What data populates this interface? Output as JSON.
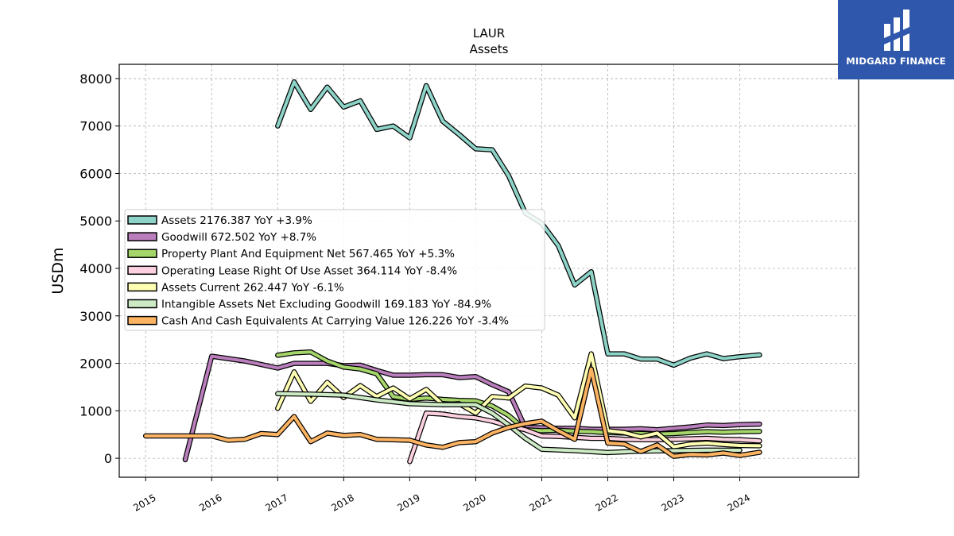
{
  "brand": {
    "name": "MIDGARD FINANCE",
    "bg": "#2f57ab"
  },
  "chart_data": {
    "type": "line",
    "title": "LAUR",
    "subtitle": "Assets",
    "ylabel": "USDm",
    "ylim": [
      -400,
      8300
    ],
    "xlim": [
      2014.6,
      2025.8
    ],
    "yticks": [
      0,
      1000,
      2000,
      3000,
      4000,
      5000,
      6000,
      7000,
      8000
    ],
    "xticks": [
      2015,
      2016,
      2017,
      2018,
      2019,
      2020,
      2021,
      2022,
      2023,
      2024
    ],
    "grid": true,
    "legend_position": "center-left",
    "series": [
      {
        "name": "Assets  2176.387 YoY +3.9%",
        "color": "#8dd3c7",
        "x": [
          2017.0,
          2017.25,
          2017.5,
          2017.75,
          2018.0,
          2018.25,
          2018.5,
          2018.75,
          2019.0,
          2019.25,
          2019.5,
          2019.75,
          2020.0,
          2020.25,
          2020.5,
          2020.75,
          2021.0,
          2021.25,
          2021.5,
          2021.75,
          2022.0,
          2022.25,
          2022.5,
          2022.75,
          2023.0,
          2023.25,
          2023.5,
          2023.75,
          2024.0,
          2024.3
        ],
        "y": [
          7000,
          7930,
          7350,
          7820,
          7400,
          7530,
          6930,
          7000,
          6750,
          7850,
          7100,
          6820,
          6520,
          6500,
          5950,
          5170,
          4950,
          4480,
          3650,
          3930,
          2200,
          2200,
          2090,
          2090,
          1960,
          2110,
          2200,
          2100,
          2140,
          2176
        ]
      },
      {
        "name": "Goodwill  672.502 YoY +8.7%",
        "color": "#b97ebb",
        "x": [
          2015.6,
          2016.0,
          2016.5,
          2017.0,
          2017.25,
          2017.5,
          2017.75,
          2018.0,
          2018.25,
          2018.5,
          2018.75,
          2019.0,
          2019.25,
          2019.5,
          2019.75,
          2020.0,
          2020.25,
          2020.5,
          2020.75,
          2021.0,
          2021.25,
          2021.5,
          2021.75,
          2022.0,
          2022.25,
          2022.5,
          2022.75,
          2023.0,
          2023.25,
          2023.5,
          2023.75,
          2024.0,
          2024.3
        ],
        "y": [
          -30,
          2150,
          2050,
          1900,
          2000,
          2000,
          2000,
          1950,
          1960,
          1850,
          1750,
          1750,
          1760,
          1760,
          1700,
          1720,
          1550,
          1400,
          650,
          640,
          630,
          630,
          610,
          610,
          610,
          620,
          600,
          630,
          660,
          700,
          690,
          710,
          720
        ]
      },
      {
        "name": "Property Plant And Equipment Net  567.465 YoY +5.3%",
        "color": "#a5d66a",
        "x": [
          2017.0,
          2017.25,
          2017.5,
          2017.75,
          2018.0,
          2018.25,
          2018.5,
          2018.75,
          2019.0,
          2019.25,
          2019.5,
          2019.75,
          2020.0,
          2020.25,
          2020.5,
          2020.75,
          2021.0,
          2021.25,
          2021.5,
          2021.75,
          2022.0,
          2022.25,
          2022.5,
          2022.75,
          2023.0,
          2023.25,
          2023.5,
          2023.75,
          2024.0,
          2024.3
        ],
        "y": [
          2170,
          2220,
          2240,
          2050,
          1920,
          1880,
          1780,
          1300,
          1240,
          1270,
          1240,
          1220,
          1210,
          1100,
          900,
          600,
          580,
          590,
          570,
          560,
          540,
          530,
          520,
          510,
          520,
          540,
          560,
          550,
          560,
          567
        ]
      },
      {
        "name": "Operating Lease Right Of Use Asset  364.114 YoY -8.4%",
        "color": "#fcd0e0",
        "x": [
          2019.0,
          2019.25,
          2019.5,
          2019.75,
          2020.0,
          2020.25,
          2020.5,
          2020.75,
          2021.0,
          2021.25,
          2021.5,
          2021.75,
          2022.0,
          2022.25,
          2022.5,
          2022.75,
          2023.0,
          2023.25,
          2023.5,
          2023.75,
          2024.0,
          2024.3
        ],
        "y": [
          -70,
          950,
          930,
          880,
          850,
          780,
          680,
          600,
          470,
          460,
          440,
          420,
          420,
          400,
          390,
          390,
          400,
          410,
          420,
          400,
          390,
          364
        ]
      },
      {
        "name": "Assets Current  262.447 YoY -6.1%",
        "color": "#ffffb3",
        "x": [
          2017.0,
          2017.25,
          2017.5,
          2017.75,
          2018.0,
          2018.25,
          2018.5,
          2018.75,
          2019.0,
          2019.25,
          2019.5,
          2019.75,
          2020.0,
          2020.25,
          2020.5,
          2020.75,
          2021.0,
          2021.25,
          2021.5,
          2021.75,
          2022.0,
          2022.25,
          2022.5,
          2022.75,
          2023.0,
          2023.25,
          2023.5,
          2023.75,
          2024.0,
          2024.3
        ],
        "y": [
          1050,
          1820,
          1200,
          1600,
          1280,
          1530,
          1300,
          1480,
          1250,
          1450,
          1130,
          1150,
          950,
          1300,
          1270,
          1520,
          1480,
          1330,
          850,
          2200,
          580,
          540,
          450,
          530,
          240,
          300,
          320,
          290,
          270,
          262
        ]
      },
      {
        "name": "Intangible Assets Net Excluding Goodwill  169.183 YoY -84.9%",
        "color": "#ccebc5",
        "x": [
          2017.0,
          2017.5,
          2018.0,
          2018.5,
          2019.0,
          2019.5,
          2020.0,
          2020.25,
          2020.5,
          2020.75,
          2021.0,
          2021.5,
          2022.0,
          2022.5,
          2023.0,
          2023.5,
          2024.0
        ],
        "y": [
          1360,
          1350,
          1330,
          1230,
          1150,
          1130,
          1130,
          950,
          700,
          420,
          190,
          160,
          120,
          150,
          160,
          170,
          169
        ]
      },
      {
        "name": "Cash And Cash Equivalents At Carrying Value  126.226 YoY -3.4%",
        "color": "#fdb462",
        "x": [
          2015.0,
          2015.5,
          2016.0,
          2016.25,
          2016.5,
          2016.75,
          2017.0,
          2017.25,
          2017.5,
          2017.75,
          2018.0,
          2018.25,
          2018.5,
          2018.75,
          2019.0,
          2019.25,
          2019.5,
          2019.75,
          2020.0,
          2020.25,
          2020.5,
          2020.75,
          2021.0,
          2021.25,
          2021.5,
          2021.75,
          2022.0,
          2022.25,
          2022.5,
          2022.75,
          2023.0,
          2023.25,
          2023.5,
          2023.75,
          2024.0,
          2024.3
        ],
        "y": [
          470,
          470,
          470,
          380,
          400,
          520,
          500,
          880,
          350,
          530,
          480,
          500,
          400,
          390,
          380,
          280,
          230,
          330,
          350,
          530,
          650,
          730,
          780,
          580,
          400,
          1880,
          320,
          300,
          140,
          280,
          40,
          80,
          70,
          110,
          60,
          126
        ]
      }
    ]
  }
}
